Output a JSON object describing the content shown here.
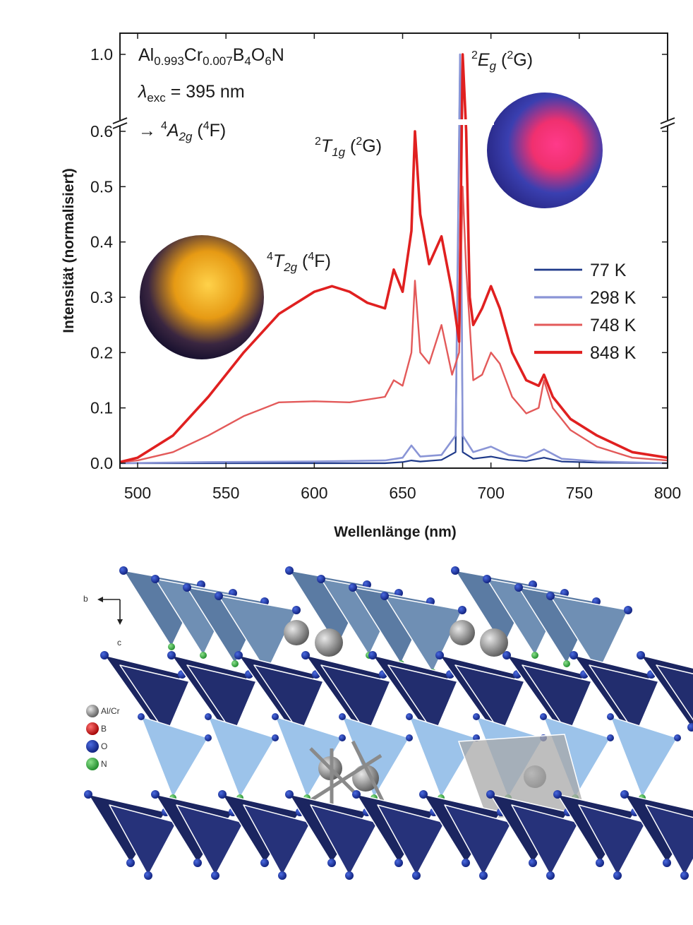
{
  "chart_data": {
    "type": "line",
    "xlabel": "Wellenlänge (nm)",
    "ylabel": "Intensität (normalisiert)",
    "xlim": [
      490,
      800
    ],
    "ylim_lower": [
      -0.01,
      0.6
    ],
    "ylim_upper_tick": 1.0,
    "axis_break": true,
    "x_ticks": [
      "500",
      "550",
      "600",
      "650",
      "700",
      "750",
      "800"
    ],
    "y_ticks_lower": [
      "0.0",
      "0.1",
      "0.2",
      "0.3",
      "0.4",
      "0.5",
      "0.6"
    ],
    "y_tick_upper": "1.0",
    "legend_position": "center-right",
    "annotations": {
      "compound": "Al0.993Cr0.007B4O6N",
      "excitation": "λexc = 395 nm",
      "ground_state": "→ 4A2g (4F)",
      "peak_4T2g": "4T2g (4F)",
      "peak_2T1g": "2T1g (2G)",
      "peak_2Eg": "2Eg (2G)"
    },
    "series": [
      {
        "name": "77 K",
        "color": "#1f3a8a",
        "x": [
          490,
          540,
          600,
          640,
          650,
          655,
          660,
          672,
          680,
          682.5,
          684,
          690,
          700,
          710,
          720,
          730,
          740,
          760,
          800
        ],
        "y": [
          0.0,
          0.0,
          0.0,
          0.0,
          0.002,
          0.005,
          0.003,
          0.006,
          0.02,
          1.0,
          0.02,
          0.008,
          0.012,
          0.006,
          0.004,
          0.01,
          0.003,
          0.001,
          0.0
        ]
      },
      {
        "name": "298 K",
        "color": "#8a95d6",
        "x": [
          490,
          540,
          600,
          640,
          650,
          655,
          660,
          672,
          680,
          682.5,
          684,
          690,
          700,
          710,
          720,
          730,
          740,
          760,
          800
        ],
        "y": [
          0.0,
          0.002,
          0.003,
          0.005,
          0.01,
          0.032,
          0.012,
          0.015,
          0.05,
          1.0,
          0.05,
          0.02,
          0.03,
          0.015,
          0.01,
          0.025,
          0.008,
          0.003,
          0.0
        ]
      },
      {
        "name": "748 K",
        "color": "#e35a5a",
        "x": [
          490,
          500,
          520,
          540,
          560,
          580,
          600,
          620,
          640,
          645,
          650,
          655,
          657,
          660,
          665,
          672,
          678,
          682,
          684,
          686,
          690,
          695,
          700,
          705,
          712,
          720,
          727,
          730,
          735,
          745,
          760,
          780,
          800
        ],
        "y": [
          0.002,
          0.005,
          0.02,
          0.05,
          0.085,
          0.11,
          0.112,
          0.11,
          0.12,
          0.15,
          0.14,
          0.2,
          0.33,
          0.2,
          0.18,
          0.25,
          0.16,
          0.2,
          0.5,
          0.35,
          0.15,
          0.16,
          0.2,
          0.18,
          0.12,
          0.09,
          0.1,
          0.15,
          0.1,
          0.06,
          0.03,
          0.01,
          0.005
        ]
      },
      {
        "name": "848 K",
        "color": "#e02020",
        "x": [
          490,
          500,
          520,
          540,
          560,
          580,
          600,
          610,
          620,
          630,
          640,
          645,
          650,
          655,
          657,
          660,
          665,
          672,
          678,
          682,
          684,
          686,
          688,
          690,
          695,
          700,
          705,
          712,
          720,
          727,
          730,
          735,
          745,
          760,
          780,
          800
        ],
        "y": [
          0.002,
          0.01,
          0.05,
          0.12,
          0.2,
          0.27,
          0.31,
          0.32,
          0.31,
          0.29,
          0.28,
          0.35,
          0.31,
          0.42,
          0.6,
          0.45,
          0.36,
          0.41,
          0.31,
          0.22,
          1.0,
          0.6,
          0.3,
          0.25,
          0.28,
          0.32,
          0.28,
          0.2,
          0.15,
          0.14,
          0.16,
          0.12,
          0.08,
          0.05,
          0.02,
          0.01
        ]
      }
    ]
  },
  "structure": {
    "axis_b": "b",
    "axis_c": "c",
    "legend": [
      {
        "label": "Al/Cr",
        "color": "#9a9a9a"
      },
      {
        "label": "B",
        "color": "#d21e1e"
      },
      {
        "label": "O",
        "color": "#1e3aa8"
      },
      {
        "label": "N",
        "color": "#37b34a"
      }
    ]
  }
}
